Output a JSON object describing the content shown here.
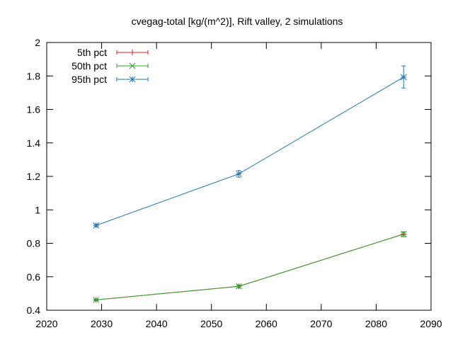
{
  "chart_data": {
    "type": "line",
    "title": "cvegag-total [kg/(m^2)], Rift valley, 2 simulations",
    "xlabel": "",
    "ylabel": "",
    "xlim": [
      2020,
      2090
    ],
    "ylim": [
      0.4,
      2.0
    ],
    "x_ticks": [
      "2020",
      "2030",
      "2040",
      "2050",
      "2060",
      "2070",
      "2080",
      "2090"
    ],
    "y_ticks": [
      "0.4",
      "0.6",
      "0.8",
      "1",
      "1.2",
      "1.4",
      "1.6",
      "1.8",
      "2"
    ],
    "grid": false,
    "legend_position": "top-left",
    "x": [
      2029,
      2055,
      2085
    ],
    "series": [
      {
        "name": "5th pct",
        "color": "#e41a1c",
        "marker": "plus",
        "values": [
          0.462,
          0.543,
          0.855
        ],
        "err_low": [
          0.457,
          0.535,
          0.84
        ],
        "err_high": [
          0.466,
          0.55,
          0.868
        ]
      },
      {
        "name": "50th pct",
        "color": "#2ca02c",
        "marker": "cross",
        "values": [
          0.462,
          0.543,
          0.855
        ],
        "err_low": [
          0.457,
          0.535,
          0.84
        ],
        "err_high": [
          0.466,
          0.55,
          0.868
        ]
      },
      {
        "name": "95th pct",
        "color": "#1f77b4",
        "marker": "star",
        "values": [
          0.907,
          1.215,
          1.793
        ],
        "err_low": [
          0.9,
          1.195,
          1.728
        ],
        "err_high": [
          0.913,
          1.235,
          1.86
        ]
      }
    ]
  }
}
